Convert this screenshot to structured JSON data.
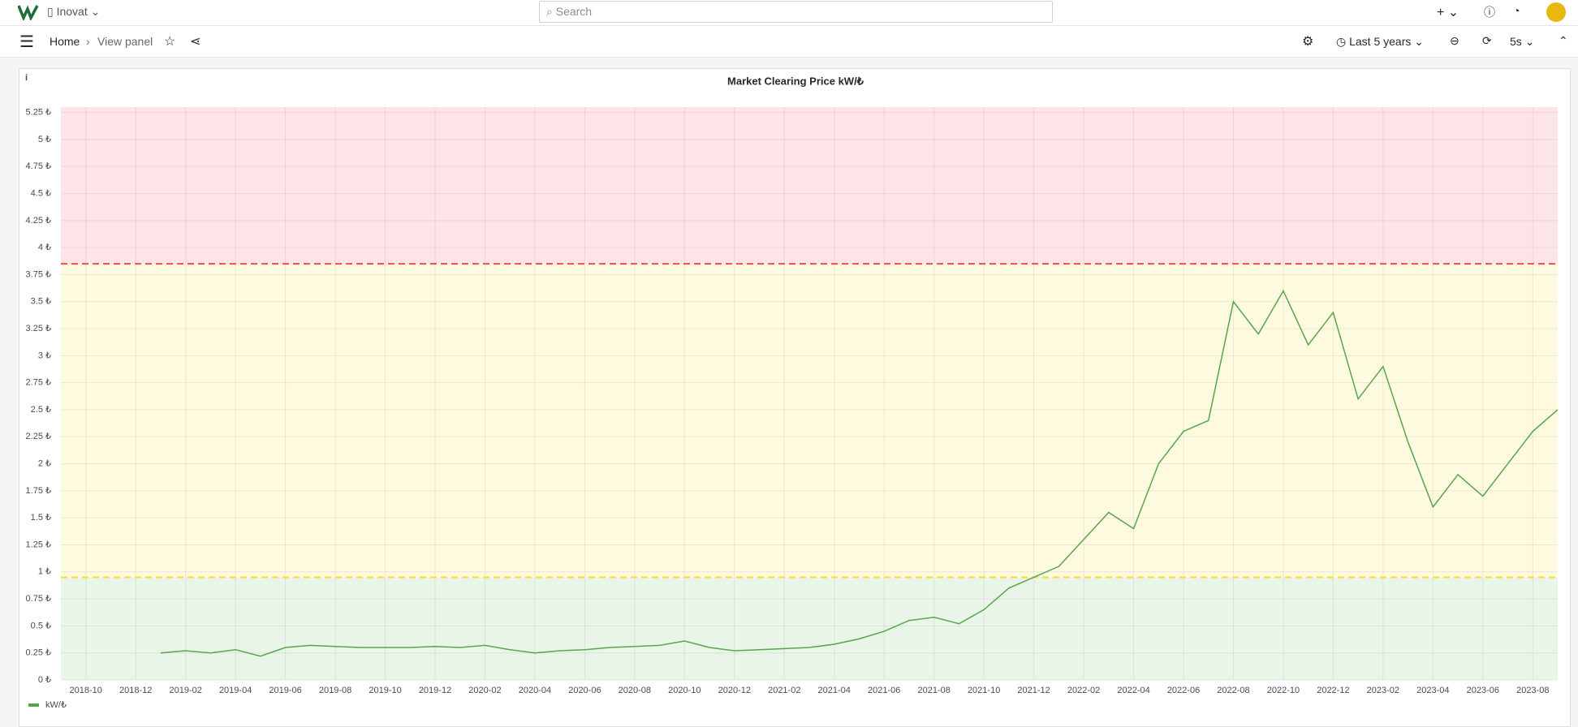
{
  "header": {
    "org": "Inovat",
    "search": "Search",
    "breadcrumb": [
      "Home",
      "View panel"
    ],
    "time_range": "Last 5 years",
    "refresh": "5s"
  },
  "chart_data": {
    "type": "line",
    "title": "Market Clearing Price kW/₺",
    "info": "i",
    "x": [
      "2019-01",
      "2019-02",
      "2019-03",
      "2019-04",
      "2019-05",
      "2019-06",
      "2019-07",
      "2019-08",
      "2019-09",
      "2019-10",
      "2019-11",
      "2019-12",
      "2020-01",
      "2020-02",
      "2020-03",
      "2020-04",
      "2020-05",
      "2020-06",
      "2020-07",
      "2020-08",
      "2020-09",
      "2020-10",
      "2020-11",
      "2020-12",
      "2021-01",
      "2021-02",
      "2021-03",
      "2021-04",
      "2021-05",
      "2021-06",
      "2021-07",
      "2021-08",
      "2021-09",
      "2021-10",
      "2021-11",
      "2021-12",
      "2022-01",
      "2022-02",
      "2022-03",
      "2022-04",
      "2022-05",
      "2022-06",
      "2022-07",
      "2022-08",
      "2022-09",
      "2022-10",
      "2022-11",
      "2022-12",
      "2023-01",
      "2023-02",
      "2023-03",
      "2023-04",
      "2023-05",
      "2023-06",
      "2023-07",
      "2023-08",
      "2023-09"
    ],
    "series": [
      {
        "name": "kW/₺",
        "color": "#56a64b",
        "values": [
          0.25,
          0.27,
          0.25,
          0.28,
          0.22,
          0.3,
          0.32,
          0.31,
          0.3,
          0.3,
          0.3,
          0.31,
          0.3,
          0.32,
          0.28,
          0.25,
          0.27,
          0.28,
          0.3,
          0.31,
          0.32,
          0.36,
          0.3,
          0.27,
          0.28,
          0.29,
          0.3,
          0.33,
          0.38,
          0.45,
          0.55,
          0.58,
          0.52,
          0.65,
          0.85,
          0.95,
          1.05,
          1.3,
          1.55,
          1.4,
          2.0,
          2.3,
          2.4,
          3.5,
          3.2,
          3.6,
          3.1,
          3.4,
          2.6,
          2.9,
          2.2,
          1.6,
          1.9,
          1.7,
          2.0,
          2.3,
          2.5
        ]
      }
    ],
    "xlim": [
      "2018-09",
      "2023-09"
    ],
    "xticks": [
      "2018-10",
      "2018-12",
      "2019-02",
      "2019-04",
      "2019-06",
      "2019-08",
      "2019-10",
      "2019-12",
      "2020-02",
      "2020-04",
      "2020-06",
      "2020-08",
      "2020-10",
      "2020-12",
      "2021-02",
      "2021-04",
      "2021-06",
      "2021-08",
      "2021-10",
      "2021-12",
      "2022-02",
      "2022-04",
      "2022-06",
      "2022-08",
      "2022-10",
      "2022-12",
      "2023-02",
      "2023-04",
      "2023-06",
      "2023-08"
    ],
    "ylim": [
      0,
      5.3
    ],
    "yticks": [
      {
        "value": 0,
        "label": "0 ₺"
      },
      {
        "value": 0.25,
        "label": "0.25 ₺"
      },
      {
        "value": 0.5,
        "label": "0.5 ₺"
      },
      {
        "value": 0.75,
        "label": "0.75 ₺"
      },
      {
        "value": 1,
        "label": "1 ₺"
      },
      {
        "value": 1.25,
        "label": "1.25 ₺"
      },
      {
        "value": 1.5,
        "label": "1.5 ₺"
      },
      {
        "value": 1.75,
        "label": "1.75 ₺"
      },
      {
        "value": 2,
        "label": "2 ₺"
      },
      {
        "value": 2.25,
        "label": "2.25 ₺"
      },
      {
        "value": 2.5,
        "label": "2.5 ₺"
      },
      {
        "value": 2.75,
        "label": "2.75 ₺"
      },
      {
        "value": 3,
        "label": "3 ₺"
      },
      {
        "value": 3.25,
        "label": "3.25 ₺"
      },
      {
        "value": 3.5,
        "label": "3.5 ₺"
      },
      {
        "value": 3.75,
        "label": "3.75 ₺"
      },
      {
        "value": 4,
        "label": "4 ₺"
      },
      {
        "value": 4.25,
        "label": "4.25 ₺"
      },
      {
        "value": 4.5,
        "label": "4.5 ₺"
      },
      {
        "value": 4.75,
        "label": "4.75 ₺"
      },
      {
        "value": 5,
        "label": "5 ₺"
      },
      {
        "value": 5.25,
        "label": "5.25 ₺"
      }
    ],
    "grid": true,
    "legend": "bottom-left",
    "threshold_base_color": "#73bf69",
    "thresholds": [
      {
        "value": 0.95,
        "color": "#fade2a"
      },
      {
        "value": 3.85,
        "color": "#f2495c"
      }
    ]
  }
}
